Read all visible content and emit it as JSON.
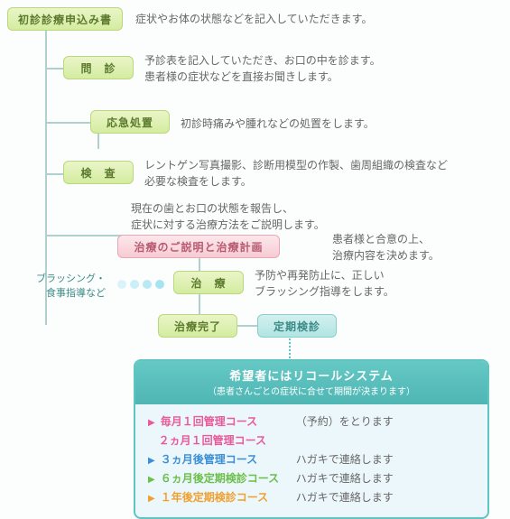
{
  "nodes": {
    "n1": {
      "label": "初診診療申込み書",
      "desc": "症状やお体の状態などを記入していただきます。"
    },
    "n2": {
      "label": "問　診",
      "desc": "予診表を記入していただき、お口の中を診ます。\n患者様の症状などを直接お聞きします。"
    },
    "n3": {
      "label": "応急処置",
      "desc": "初診時痛みや腫れなどの処置をします。"
    },
    "n4": {
      "label": "検　査",
      "desc": "レントゲン写真撮影、診断用模型の作製、歯周組織の検査など\n必要な検査をします。"
    },
    "n5": {
      "label": "治療のご説明と治療計画",
      "pre": "現在の歯とお口の状態を報告し、\n症状に対する治療方法をご説明します。",
      "desc": "患者様と合意の上、\n治療内容を決めます。"
    },
    "n6": {
      "label": "治　療",
      "desc": "予防や再発防止に、正しい\nブラッシング指導をします。",
      "side": "ブラッシング・\n食事指導など"
    },
    "n7": {
      "label": "治療完了"
    },
    "n8": {
      "label": "定期検診"
    }
  },
  "recall": {
    "title": "希望者にはリコールシステム",
    "sub": "（患者さんごとの症状に合せて期間が決まります）",
    "courses": [
      {
        "color": "#e85a9a",
        "label": "毎月１回管理コース",
        "sublabel": "２ヵ月１回管理コース",
        "note": "（予約）をとります"
      },
      {
        "color": "#3b8fd6",
        "label": "３ヵ月後管理コース",
        "note": "ハガキで連絡します"
      },
      {
        "color": "#6bbf4a",
        "label": "６ヵ月後定期検診コース",
        "note": "ハガキで連絡します"
      },
      {
        "color": "#f0a030",
        "label": "１年後定期検診コース",
        "note": "ハガキで連絡します"
      }
    ]
  },
  "colors": {
    "line": "#b0d0d0",
    "teal": "#5fc5c2"
  }
}
